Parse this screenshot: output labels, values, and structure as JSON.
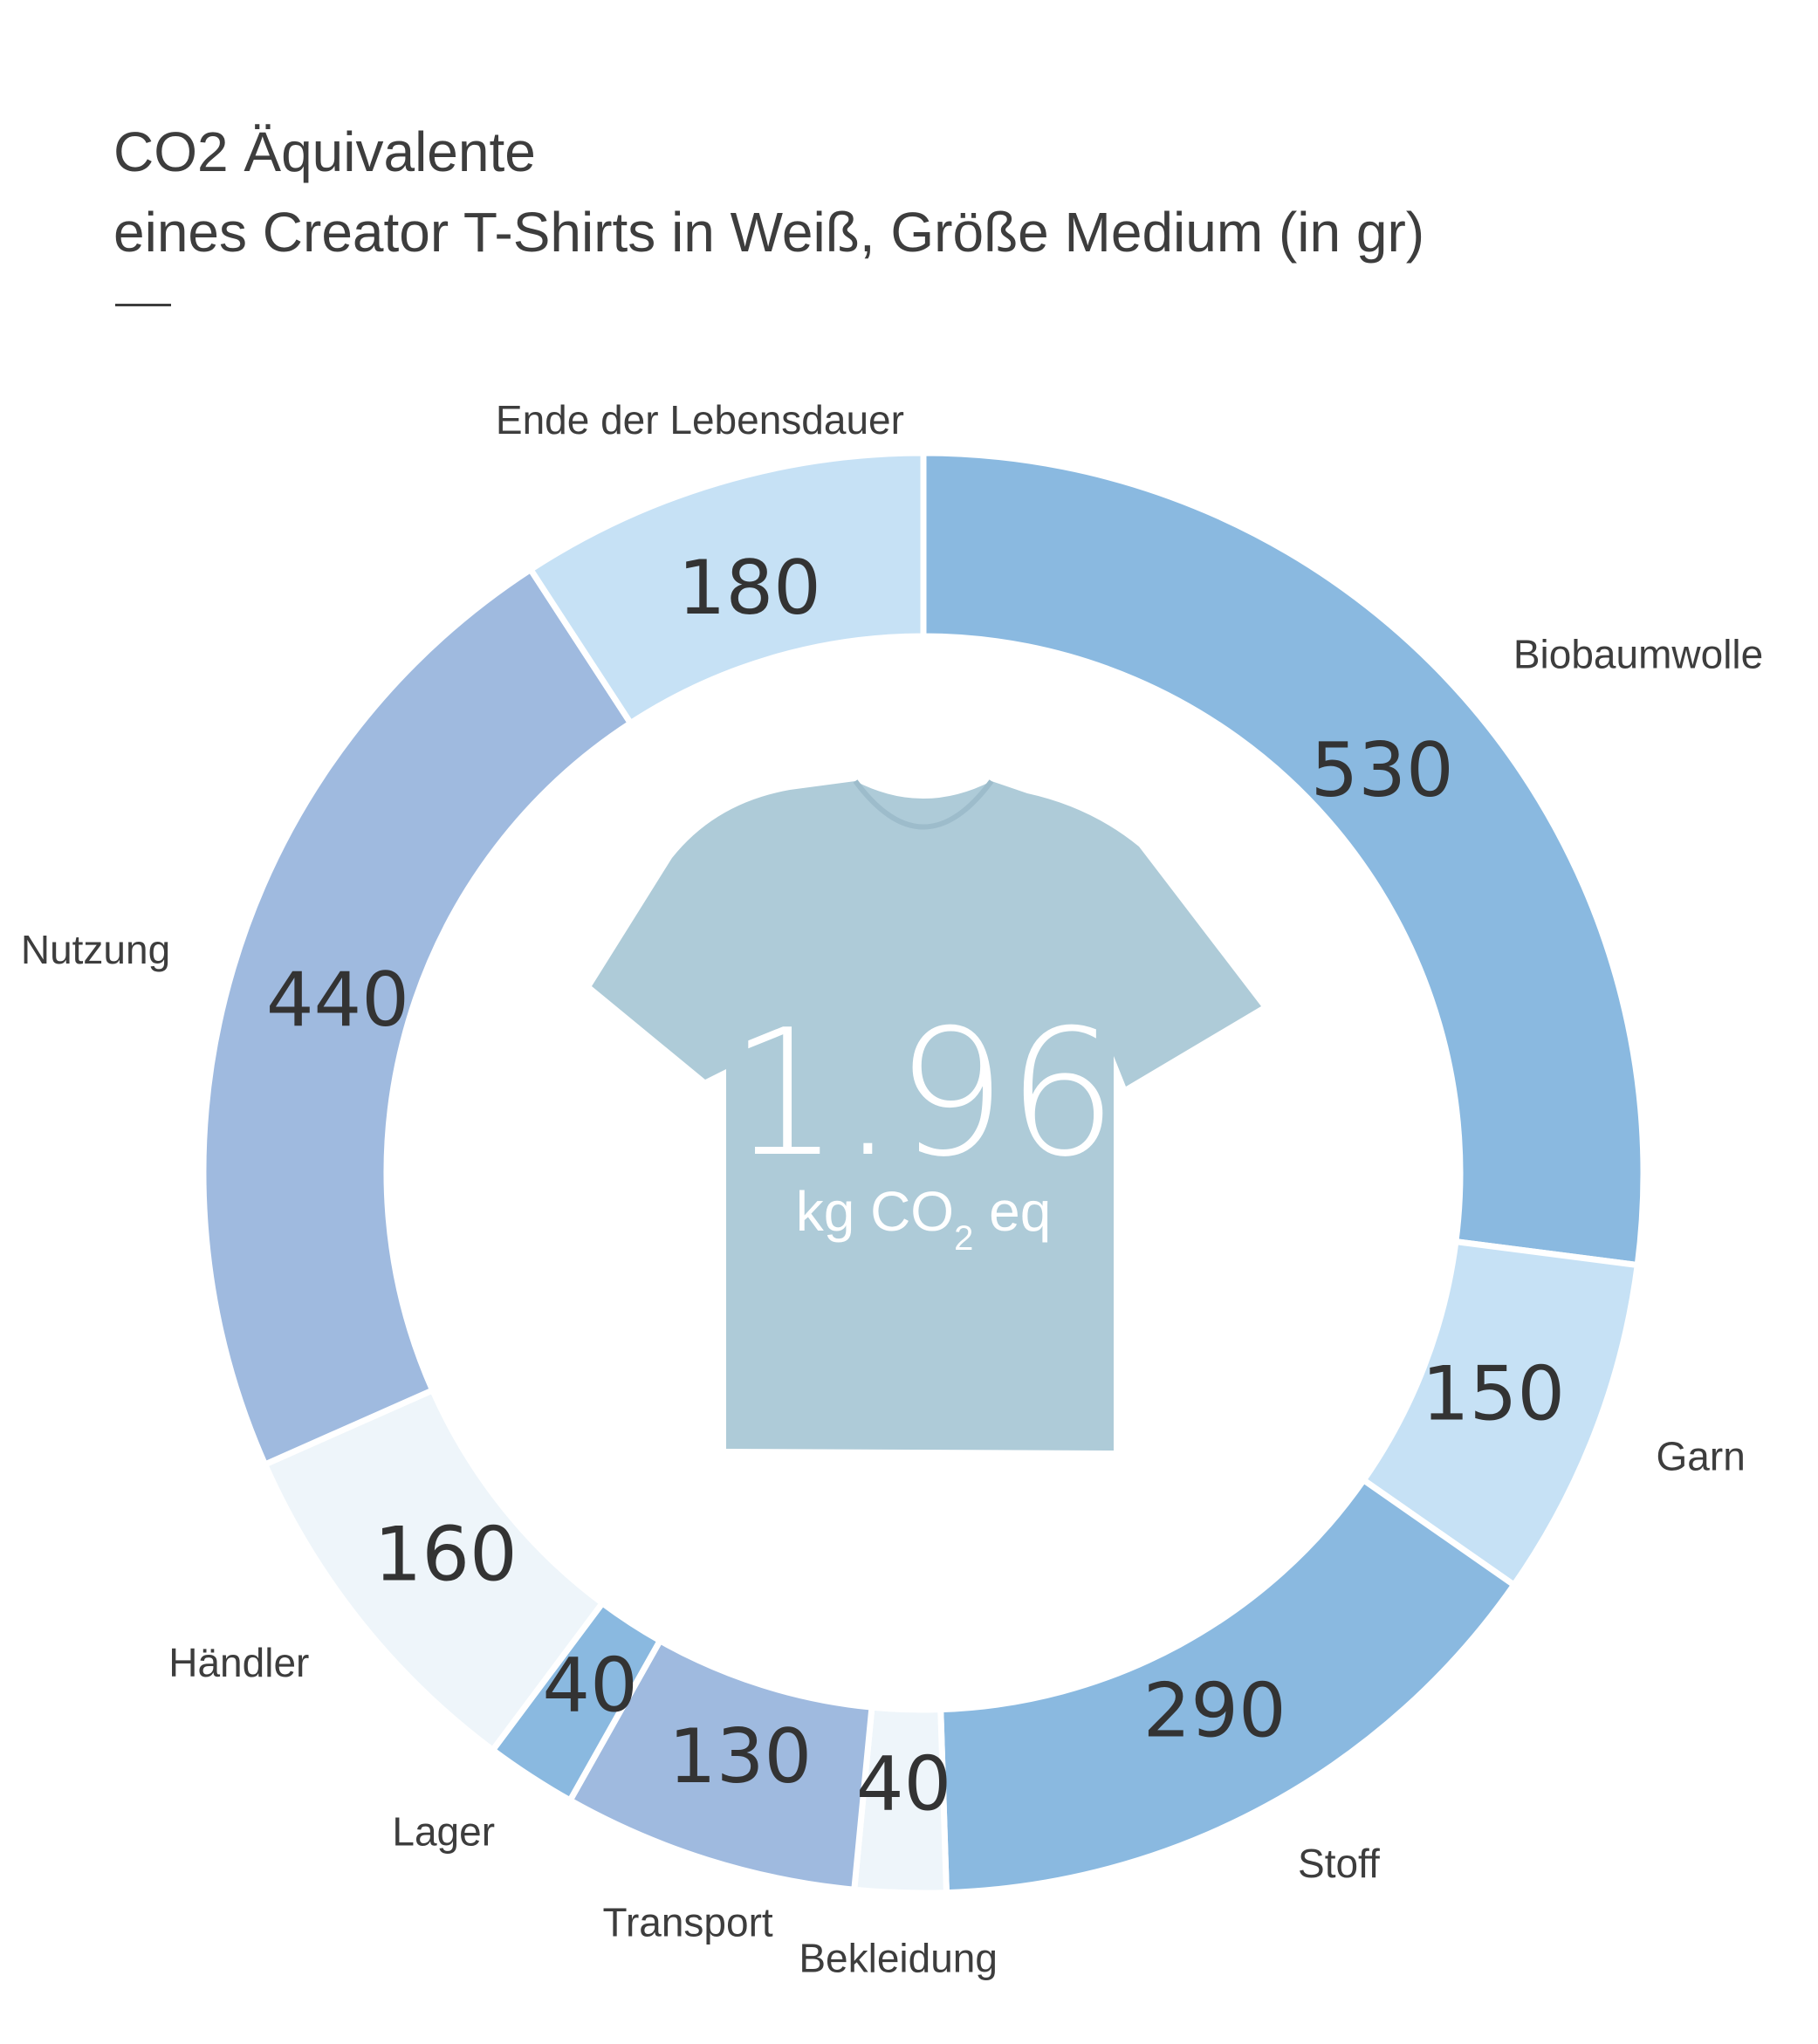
{
  "header": {
    "title_line1": "CO2 Äquivalente",
    "title_line2": "eines Creator T-Shirts in Weiß, Größe Medium (in gr)"
  },
  "center": {
    "value": "1.96",
    "unit_prefix": "kg CO",
    "unit_subscript": "2",
    "unit_suffix": " eq",
    "shirt_color": "#aecbd8"
  },
  "chart_data": {
    "type": "pie",
    "variant": "donut",
    "categories": [
      "Biobaumwolle",
      "Garn",
      "Stoff",
      "Bekleidung",
      "Transport",
      "Lager",
      "Händler",
      "Nutzung",
      "Ende der Lebensdauer"
    ],
    "values": [
      530,
      150,
      290,
      40,
      130,
      40,
      160,
      440,
      180
    ],
    "colors": [
      "#8ab9e0",
      "#c6e1f5",
      "#8ab9e0",
      "#eef5fa",
      "#9fbadf",
      "#8ab9e0",
      "#eef5fa",
      "#9fbadf",
      "#c6e1f5"
    ],
    "start_angle_deg": 0,
    "direction": "clockwise"
  }
}
